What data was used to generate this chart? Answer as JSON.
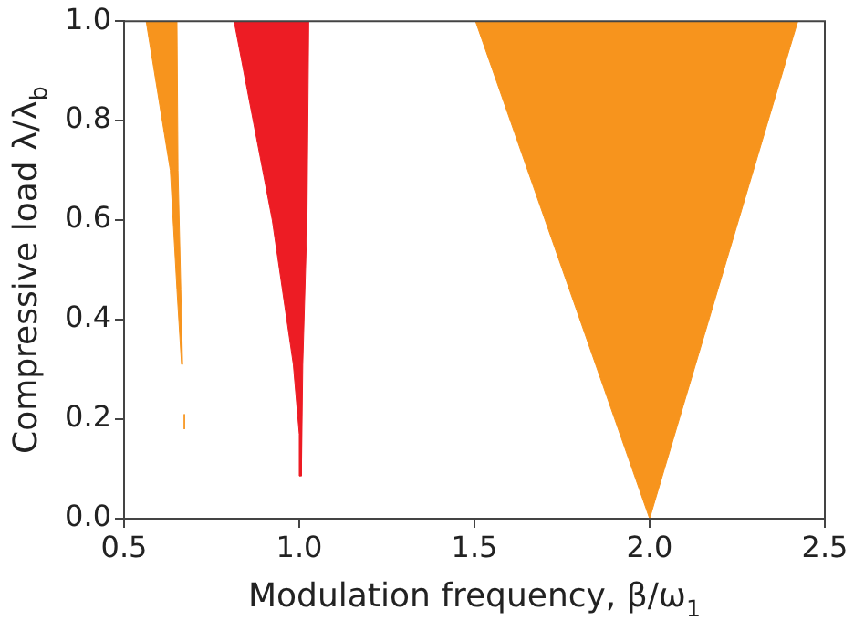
{
  "chart_data": {
    "type": "area",
    "xlabel": "Modulation frequency, β/ω$_{1}$",
    "ylabel": "Compressive load λ/λ$_{b}$",
    "series": [
      {
        "color": "#f7941d",
        "x": [
          0.563,
          0.651,
          0.654,
          0.662,
          0.667,
          0.664,
          0.651,
          0.632,
          0.563
        ],
        "values": [
          1,
          1,
          0.7,
          0.46,
          0.31,
          0.31,
          0.46,
          0.7,
          1
        ]
      },
      {
        "type": "line",
        "color": "#f7941d",
        "x": [
          0.672,
          0.672
        ],
        "values": [
          0.21,
          0.18
        ]
      },
      {
        "color": "#ed1c24",
        "x": [
          0.814,
          1.027,
          1.022,
          1.01,
          1.006,
          1.006,
          1.004,
          1.0,
          0.983,
          0.923,
          0.814
        ],
        "values": [
          1,
          1,
          0.6,
          0.31,
          0.17,
          0.086,
          0.086,
          0.17,
          0.31,
          0.6,
          1
        ]
      },
      {
        "color": "#f7941d",
        "x": [
          1.503,
          2.423,
          2.0,
          1.503
        ],
        "values": [
          1,
          1,
          0,
          1
        ]
      }
    ],
    "xlim": [
      0.5,
      2.5
    ],
    "xticks": [
      {
        "value": 0.5,
        "label": "0.5"
      },
      {
        "value": 1,
        "label": "1.0"
      },
      {
        "value": 1.5,
        "label": "1.5"
      },
      {
        "value": 2,
        "label": "2.0"
      },
      {
        "value": 2.5,
        "label": "2.5"
      }
    ],
    "ylim": [
      0,
      1
    ],
    "yticks": [
      {
        "value": 0,
        "label": "0.0"
      },
      {
        "value": 0.2,
        "label": "0.2"
      },
      {
        "value": 0.4,
        "label": "0.4"
      },
      {
        "value": 0.6,
        "label": "0.6"
      },
      {
        "value": 0.8,
        "label": "0.8"
      },
      {
        "value": 1,
        "label": "1.0"
      }
    ],
    "grid": false,
    "legend": false
  }
}
